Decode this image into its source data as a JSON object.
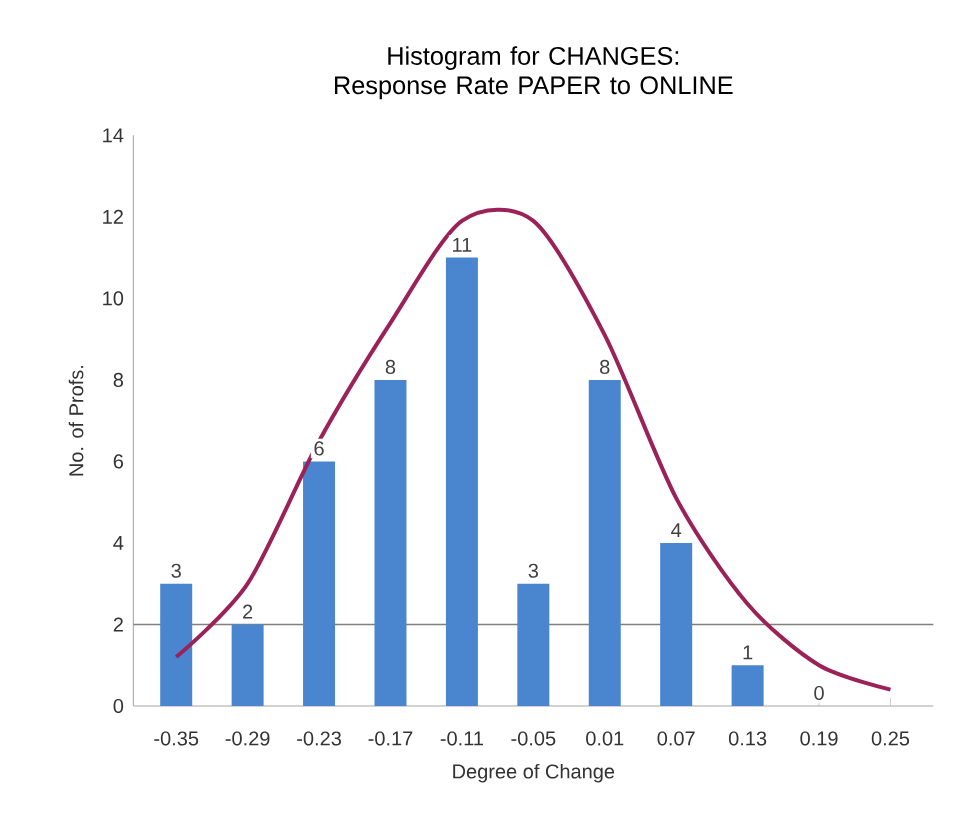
{
  "chart_data": {
    "type": "bar",
    "title": "Histogram for CHANGES: Response Rate PAPER to ONLINE",
    "xlabel": "Degree of Change",
    "ylabel": "No. of Profs.",
    "categories": [
      "-0.35",
      "-0.29",
      "-0.23",
      "-0.17",
      "-0.11",
      "-0.05",
      "0.01",
      "0.07",
      "0.13",
      "0.19",
      "0.25"
    ],
    "series": [
      {
        "color": "#4a86d0",
        "values": [
          3,
          2,
          6,
          8,
          11,
          3,
          8,
          4,
          1,
          0,
          null
        ],
        "value_labels": [
          "3",
          "2",
          "6",
          "8",
          "11",
          "3",
          "8",
          "4",
          "1",
          "0",
          null
        ]
      },
      {
        "type": "line",
        "color": "#9b2258",
        "values": [
          1.2,
          3.0,
          6.5,
          9.4,
          11.9,
          11.9,
          9.1,
          5.1,
          2.5,
          1.0,
          0.4
        ]
      }
    ],
    "ylim": [
      0,
      14
    ],
    "yticks": [
      0,
      2,
      4,
      6,
      8,
      10,
      12,
      14
    ],
    "ref_lines": [
      {
        "axis": "y",
        "value": 2,
        "color": "#808080"
      }
    ],
    "grid": false
  }
}
